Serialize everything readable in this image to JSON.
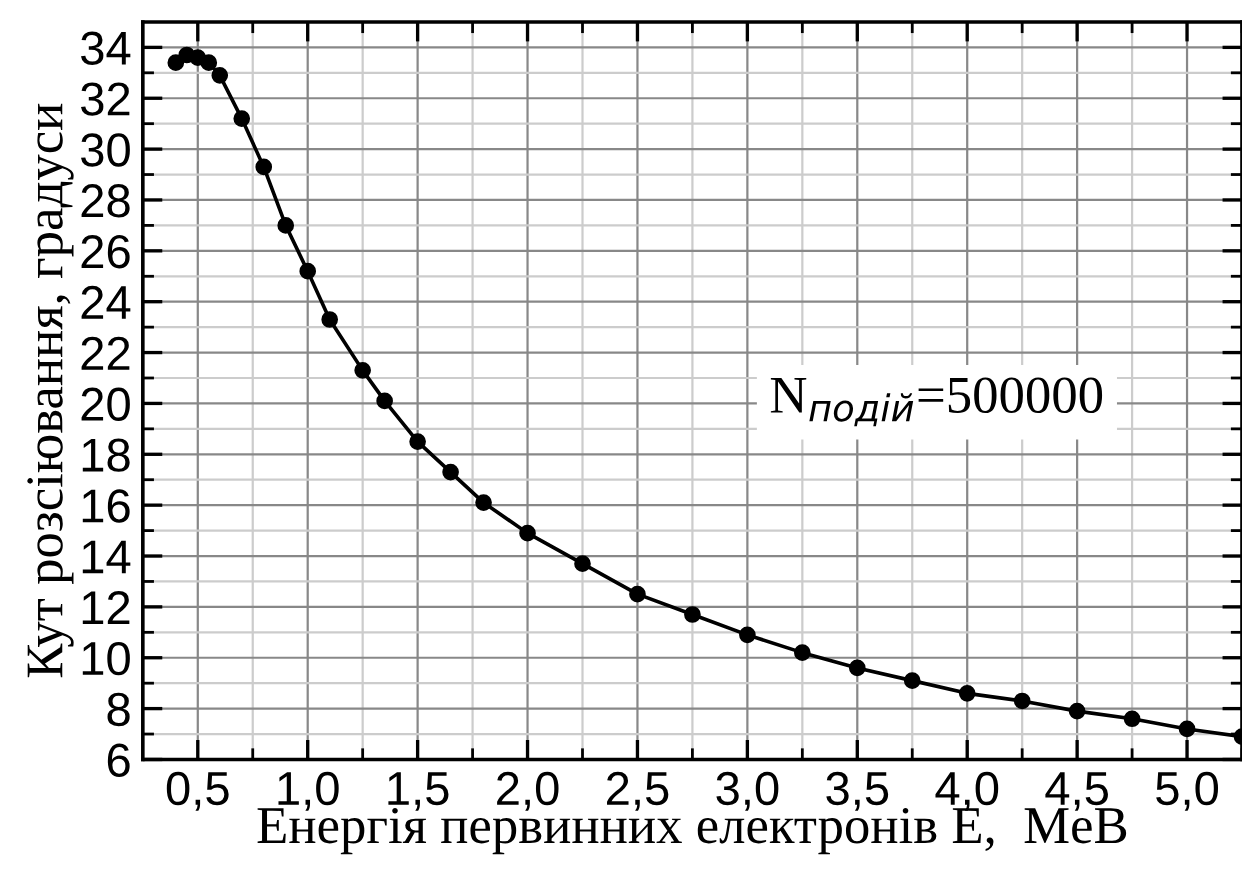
{
  "chart_data": {
    "type": "line",
    "xlabel": "Енергія первинних електронів E,  MeB",
    "ylabel": "Кут розсіювання, градуси",
    "annotations": [
      "N$_{подій}$=500000"
    ],
    "x": [
      0.4,
      0.45,
      0.5,
      0.55,
      0.6,
      0.7,
      0.8,
      0.9,
      1.0,
      1.1,
      1.25,
      1.35,
      1.5,
      1.65,
      1.8,
      2.0,
      2.25,
      2.5,
      2.75,
      3.0,
      3.25,
      3.5,
      3.75,
      4.0,
      4.25,
      4.5,
      4.75,
      5.0,
      5.25
    ],
    "series": [
      {
        "color": "#000000",
        "values": [
          33.4,
          33.7,
          33.6,
          33.4,
          32.9,
          31.2,
          29.3,
          27.0,
          25.2,
          23.3,
          21.3,
          20.1,
          18.5,
          17.3,
          16.1,
          14.9,
          13.7,
          12.5,
          11.7,
          10.9,
          10.2,
          9.6,
          9.1,
          8.6,
          8.3,
          7.9,
          7.6,
          7.2,
          6.9
        ]
      }
    ],
    "xlim": [
      0.25,
      5.25
    ],
    "ylim": [
      6,
      35
    ],
    "xticks": [
      {
        "value": 0.5,
        "label": "0,5"
      },
      {
        "value": 1.0,
        "label": "1,0"
      },
      {
        "value": 1.5,
        "label": "1,5"
      },
      {
        "value": 2.0,
        "label": "2,0"
      },
      {
        "value": 2.5,
        "label": "2,5"
      },
      {
        "value": 3.0,
        "label": "3,0"
      },
      {
        "value": 3.5,
        "label": "3,5"
      },
      {
        "value": 4.0,
        "label": "4,0"
      },
      {
        "value": 4.5,
        "label": "4,5"
      },
      {
        "value": 5.0,
        "label": "5,0"
      }
    ],
    "yticks": [
      6,
      8,
      10,
      12,
      14,
      16,
      18,
      20,
      22,
      24,
      26,
      28,
      30,
      32,
      34
    ],
    "grid": true,
    "marker": "circle",
    "line_style": "solid"
  }
}
